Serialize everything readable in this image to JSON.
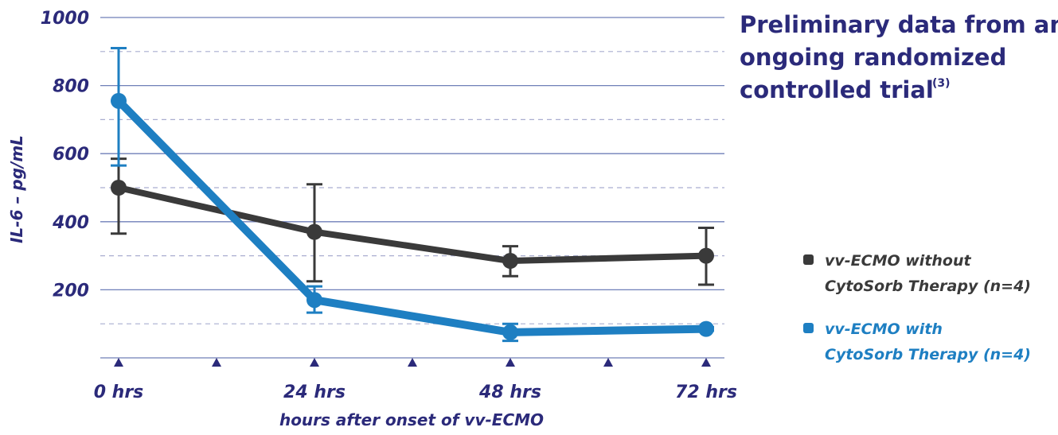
{
  "chart_data": {
    "type": "line",
    "title_lines": [
      "Preliminary data from an",
      "ongoing randomized",
      "controlled trial"
    ],
    "title_superscript": "(3)",
    "xlabel": "hours after onset of vv-ECMO",
    "ylabel": "IL-6 – pg/mL",
    "x_ticks": [
      "0 hrs",
      "24 hrs",
      "48 hrs",
      "72 hrs"
    ],
    "x_values": [
      0,
      24,
      48,
      72
    ],
    "x_markers": [
      0,
      12,
      24,
      36,
      48,
      60,
      72
    ],
    "y_ticks": [
      "1000",
      "800",
      "600",
      "400",
      "200"
    ],
    "y_tick_values": [
      1000,
      800,
      600,
      400,
      200
    ],
    "y_dashed_values": [
      900,
      700,
      500,
      300,
      100
    ],
    "ylim": [
      0,
      1000
    ],
    "xlim": [
      0,
      72
    ],
    "grid": true,
    "legend_position": "right",
    "series": [
      {
        "name": "vv-ECMO without CytoSorb Therapy (n=4)",
        "legend_lines": [
          "vv-ECMO without",
          "CytoSorb Therapy (n=4)"
        ],
        "color": "#3a3a3a",
        "text_color": "#3a3a3a",
        "values": [
          500,
          370,
          285,
          300
        ],
        "err_low": [
          365,
          225,
          240,
          215
        ],
        "err_high": [
          585,
          510,
          328,
          382
        ]
      },
      {
        "name": "vv-ECMO with CytoSorb Therapy (n=4)",
        "legend_lines": [
          "vv-ECMO with",
          "CytoSorb Therapy (n=4)"
        ],
        "color": "#1e7fc2",
        "text_color": "#1e7fc2",
        "values": [
          755,
          170,
          75,
          85
        ],
        "err_low": [
          565,
          133,
          50,
          80
        ],
        "err_high": [
          910,
          210,
          100,
          90
        ]
      }
    ]
  },
  "colors": {
    "axis_text": "#2b2a7a",
    "grid_solid": "#6f7fb8",
    "grid_dashed": "#a9aed0",
    "marker": "#2b2a7a"
  }
}
